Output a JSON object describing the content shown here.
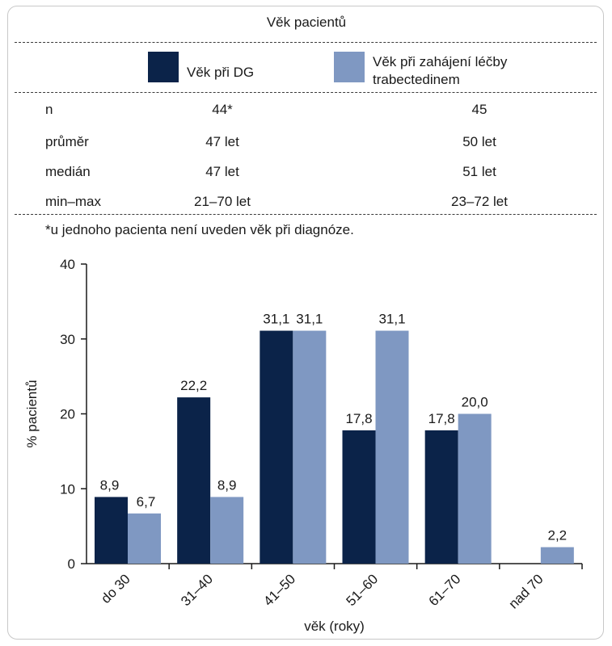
{
  "table": {
    "title": "Věk pacientů",
    "legend": [
      {
        "label": "Věk při DG",
        "color": "#0b2349"
      },
      {
        "label_line1": "Věk při zahájení léčby",
        "label_line2": "trabectedinem",
        "color": "#7f98c2"
      }
    ],
    "rows": [
      {
        "label": "n",
        "dg": "44*",
        "trab": "45"
      },
      {
        "label": "průměr",
        "dg": "47 let",
        "trab": "50 let"
      },
      {
        "label": "medián",
        "dg": "47 let",
        "trab": "51 let"
      },
      {
        "label": "min–max",
        "dg": "21–70 let",
        "trab": "23–72 let"
      }
    ],
    "footnote": "*u jednoho pacienta není uveden věk při diagnóze."
  },
  "chart_data": {
    "type": "bar",
    "categories": [
      "do 30",
      "31–40",
      "41–50",
      "51–60",
      "61–70",
      "nad 70"
    ],
    "series": [
      {
        "name": "Věk při DG",
        "color": "#0b2349",
        "values": [
          8.9,
          22.2,
          31.1,
          17.8,
          17.8,
          null
        ],
        "labels": [
          "8,9",
          "22,2",
          "31,1",
          "17,8",
          "17,8",
          ""
        ]
      },
      {
        "name": "Věk při zahájení léčby trabectedinem",
        "color": "#7f98c2",
        "values": [
          6.7,
          8.9,
          31.1,
          31.1,
          20.0,
          2.2
        ],
        "labels": [
          "6,7",
          "8,9",
          "31,1",
          "31,1",
          "20,0",
          "2,2"
        ]
      }
    ],
    "xlabel": "věk (roky)",
    "ylabel": "% pacientů",
    "ylim": [
      0,
      40
    ],
    "yticks": [
      0,
      10,
      20,
      30,
      40
    ]
  }
}
